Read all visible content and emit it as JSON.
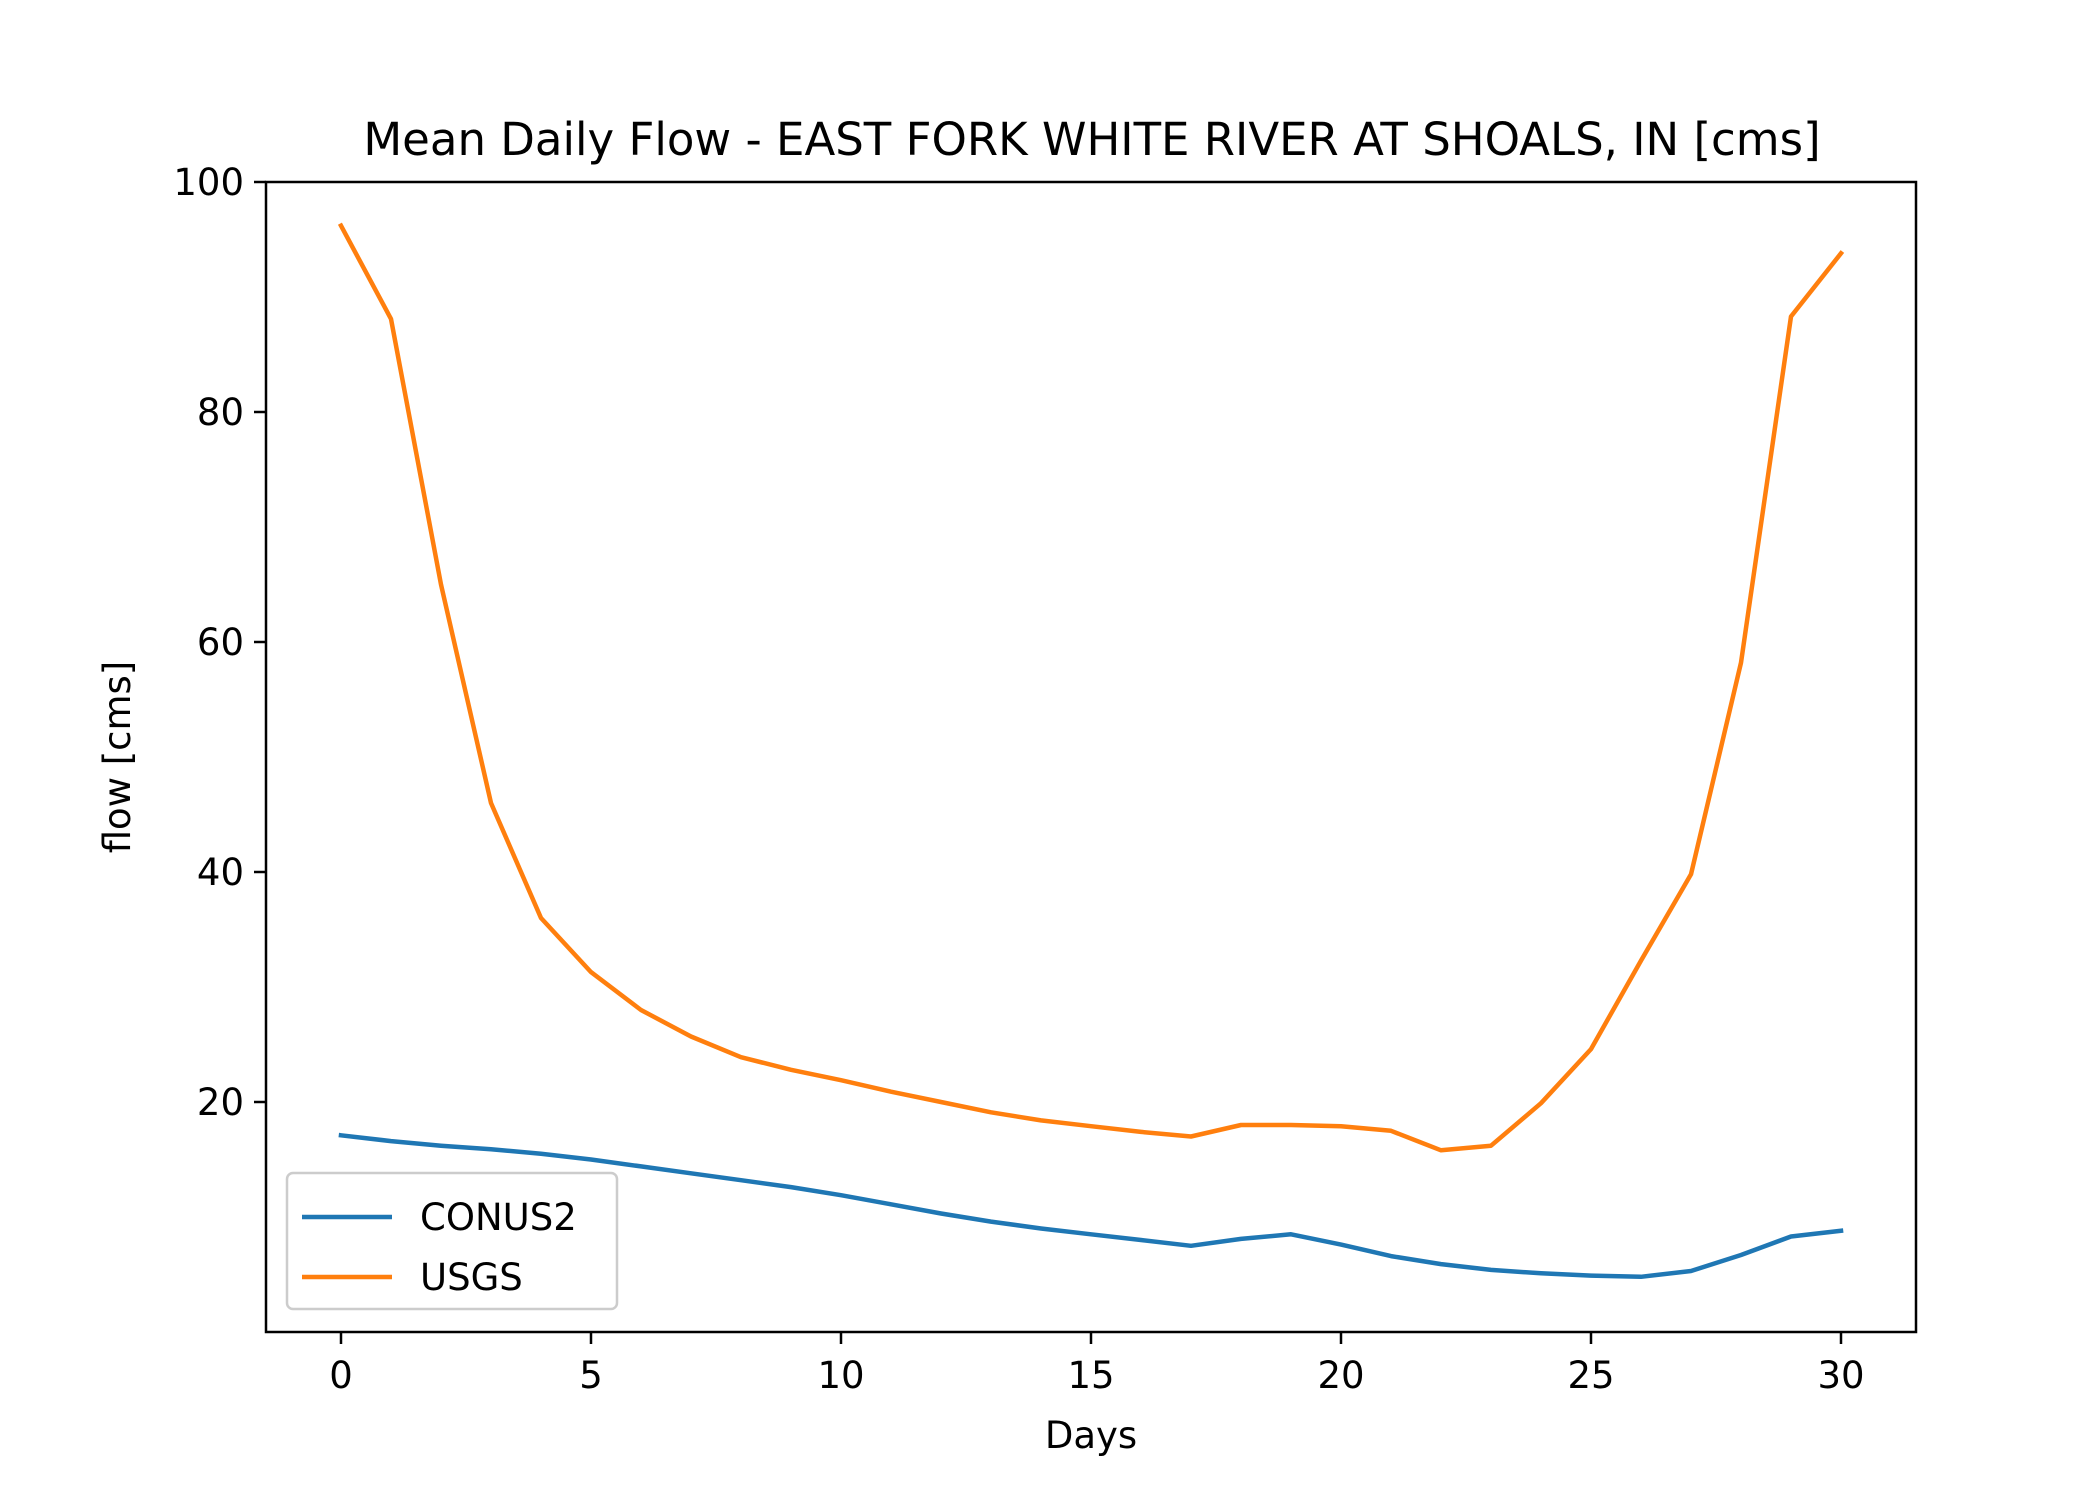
{
  "chart_data": {
    "type": "line",
    "title": "Mean Daily Flow - EAST FORK WHITE RIVER AT SHOALS, IN [cms]",
    "xlabel": "Days",
    "ylabel": "flow [cms]",
    "xlim": [
      -1.5,
      31.5
    ],
    "ylim": [
      0,
      100
    ],
    "xticks": [
      0,
      5,
      10,
      15,
      20,
      25,
      30
    ],
    "yticks": [
      20,
      40,
      60,
      80,
      100
    ],
    "grid": false,
    "legend_position": "lower-left",
    "x": [
      0,
      1,
      2,
      3,
      4,
      5,
      6,
      7,
      8,
      9,
      10,
      11,
      12,
      13,
      14,
      15,
      16,
      17,
      18,
      19,
      20,
      21,
      22,
      23,
      24,
      25,
      26,
      27,
      28,
      29,
      30
    ],
    "series": [
      {
        "name": "CONUS2",
        "color": "#1f77b4",
        "values": [
          17.1,
          16.6,
          16.2,
          15.9,
          15.5,
          15.0,
          14.4,
          13.8,
          13.2,
          12.6,
          11.9,
          11.1,
          10.3,
          9.6,
          9.0,
          8.5,
          8.0,
          7.5,
          8.1,
          8.5,
          7.6,
          6.6,
          5.9,
          5.4,
          5.1,
          4.9,
          4.8,
          5.3,
          6.7,
          8.3,
          8.8
        ]
      },
      {
        "name": "USGS",
        "color": "#ff7f0e",
        "values": [
          96.2,
          88.1,
          65.0,
          46.0,
          36.0,
          31.3,
          28.0,
          25.7,
          23.9,
          22.8,
          21.9,
          20.9,
          20.0,
          19.1,
          18.4,
          17.9,
          17.4,
          17.0,
          18.0,
          18.0,
          17.9,
          17.5,
          15.8,
          16.2,
          19.9,
          24.6,
          32.3,
          39.8,
          58.2,
          88.3,
          93.8
        ]
      }
    ]
  }
}
